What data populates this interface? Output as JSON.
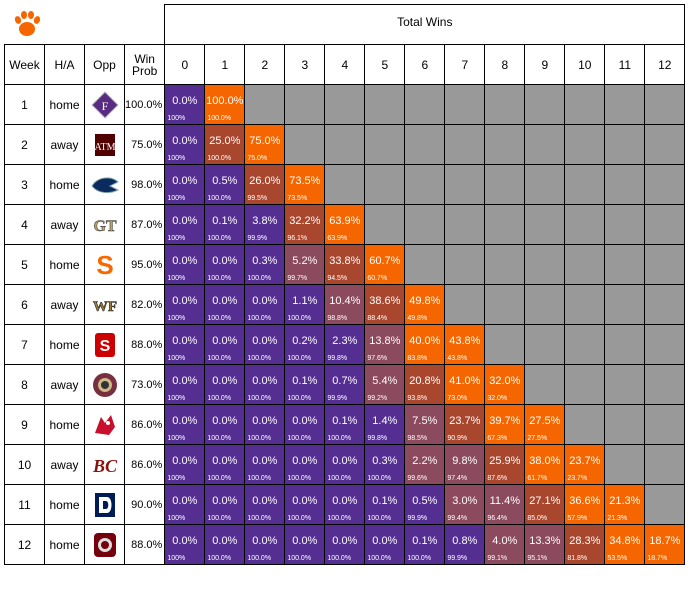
{
  "chart_data": {
    "type": "table",
    "title": "Total Wins",
    "columns": [
      "Week",
      "H/A",
      "Opp",
      "Win Prob"
    ],
    "win_totals": [
      "0",
      "1",
      "2",
      "3",
      "4",
      "5",
      "6",
      "7",
      "8",
      "9",
      "10",
      "11",
      "12"
    ],
    "rows": [
      {
        "week": "1",
        "ha": "home",
        "opp": "furman-logo",
        "prob": "100.0%",
        "pct": [
          "0.0%",
          "100.0%"
        ],
        "cum": [
          "100%",
          "100.0%"
        ]
      },
      {
        "week": "2",
        "ha": "away",
        "opp": "texas-am-logo",
        "prob": "75.0%",
        "pct": [
          "0.0%",
          "25.0%",
          "75.0%"
        ],
        "cum": [
          "100%",
          "100.0%",
          "75.0%"
        ]
      },
      {
        "week": "3",
        "ha": "home",
        "opp": "georgia-southern-logo",
        "prob": "98.0%",
        "pct": [
          "0.0%",
          "0.5%",
          "26.0%",
          "73.5%"
        ],
        "cum": [
          "100%",
          "100.0%",
          "99.5%",
          "73.5%"
        ]
      },
      {
        "week": "4",
        "ha": "away",
        "opp": "georgia-tech-logo",
        "prob": "87.0%",
        "pct": [
          "0.0%",
          "0.1%",
          "3.8%",
          "32.2%",
          "63.9%"
        ],
        "cum": [
          "100%",
          "100.0%",
          "99.9%",
          "96.1%",
          "63.9%"
        ]
      },
      {
        "week": "5",
        "ha": "home",
        "opp": "syracuse-logo",
        "prob": "95.0%",
        "pct": [
          "0.0%",
          "0.0%",
          "0.3%",
          "5.2%",
          "33.8%",
          "60.7%"
        ],
        "cum": [
          "100%",
          "100.0%",
          "100.0%",
          "99.7%",
          "94.5%",
          "60.7%"
        ]
      },
      {
        "week": "6",
        "ha": "away",
        "opp": "wake-forest-logo",
        "prob": "82.0%",
        "pct": [
          "0.0%",
          "0.0%",
          "0.0%",
          "1.1%",
          "10.4%",
          "38.6%",
          "49.8%"
        ],
        "cum": [
          "100%",
          "100.0%",
          "100.0%",
          "100.0%",
          "98.8%",
          "88.4%",
          "49.8%"
        ]
      },
      {
        "week": "7",
        "ha": "home",
        "opp": "nc-state-logo",
        "prob": "88.0%",
        "pct": [
          "0.0%",
          "0.0%",
          "0.0%",
          "0.2%",
          "2.3%",
          "13.8%",
          "40.0%",
          "43.8%"
        ],
        "cum": [
          "100%",
          "100.0%",
          "100.0%",
          "100.0%",
          "99.8%",
          "97.6%",
          "83.8%",
          "43.8%"
        ]
      },
      {
        "week": "8",
        "ha": "away",
        "opp": "florida-state-logo",
        "prob": "73.0%",
        "pct": [
          "0.0%",
          "0.0%",
          "0.0%",
          "0.1%",
          "0.7%",
          "5.4%",
          "20.8%",
          "41.0%",
          "32.0%"
        ],
        "cum": [
          "100%",
          "100.0%",
          "100.0%",
          "100.0%",
          "99.9%",
          "99.2%",
          "93.8%",
          "73.0%",
          "32.0%"
        ]
      },
      {
        "week": "9",
        "ha": "home",
        "opp": "louisville-logo",
        "prob": "86.0%",
        "pct": [
          "0.0%",
          "0.0%",
          "0.0%",
          "0.0%",
          "0.1%",
          "1.4%",
          "7.5%",
          "23.7%",
          "39.7%",
          "27.5%"
        ],
        "cum": [
          "100%",
          "100.0%",
          "100.0%",
          "100.0%",
          "100.0%",
          "99.8%",
          "98.5%",
          "90.9%",
          "67.3%",
          "27.5%"
        ]
      },
      {
        "week": "10",
        "ha": "away",
        "opp": "boston-college-logo",
        "prob": "86.0%",
        "pct": [
          "0.0%",
          "0.0%",
          "0.0%",
          "0.0%",
          "0.0%",
          "0.3%",
          "2.2%",
          "9.8%",
          "25.9%",
          "38.0%",
          "23.7%"
        ],
        "cum": [
          "100%",
          "100.0%",
          "100.0%",
          "100.0%",
          "100.0%",
          "100.0%",
          "99.6%",
          "97.4%",
          "87.6%",
          "61.7%",
          "23.7%"
        ]
      },
      {
        "week": "11",
        "ha": "home",
        "opp": "duke-logo",
        "prob": "90.0%",
        "pct": [
          "0.0%",
          "0.0%",
          "0.0%",
          "0.0%",
          "0.0%",
          "0.1%",
          "0.5%",
          "3.0%",
          "11.4%",
          "27.1%",
          "36.6%",
          "21.3%"
        ],
        "cum": [
          "100%",
          "100.0%",
          "100.0%",
          "100.0%",
          "100.0%",
          "100.0%",
          "99.9%",
          "99.4%",
          "96.4%",
          "85.0%",
          "57.9%",
          "21.3%"
        ]
      },
      {
        "week": "12",
        "ha": "home",
        "opp": "south-carolina-logo",
        "prob": "88.0%",
        "pct": [
          "0.0%",
          "0.0%",
          "0.0%",
          "0.0%",
          "0.0%",
          "0.0%",
          "0.1%",
          "0.8%",
          "4.0%",
          "13.3%",
          "28.3%",
          "34.8%",
          "18.7%"
        ],
        "cum": [
          "100%",
          "100.0%",
          "100.0%",
          "100.0%",
          "100.0%",
          "100.0%",
          "100.0%",
          "99.9%",
          "99.1%",
          "95.1%",
          "81.8%",
          "53.5%",
          "18.7%"
        ]
      }
    ]
  },
  "colors": {
    "purple": "#542E91",
    "purple_light": "#6A3FA0",
    "mid": "#8B4A5E",
    "rust": "#A9472E",
    "orange": "#F56600",
    "gray": "#999999"
  },
  "header_logo": "clemson-paw-logo"
}
